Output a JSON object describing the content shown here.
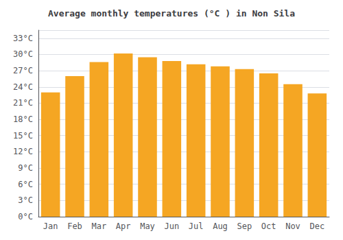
{
  "chart_data": {
    "type": "bar",
    "title": "Average monthly temperatures (°C ) in Non Sila",
    "categories": [
      "Jan",
      "Feb",
      "Mar",
      "Apr",
      "May",
      "Jun",
      "Jul",
      "Aug",
      "Sep",
      "Oct",
      "Nov",
      "Dec"
    ],
    "values": [
      23.0,
      26.0,
      28.6,
      30.2,
      29.5,
      28.8,
      28.2,
      27.8,
      27.3,
      26.5,
      24.5,
      22.8
    ],
    "color": "#F5A623",
    "ylim": [
      0,
      34.5
    ],
    "yticks": [
      {
        "value": 0,
        "label": "0°C"
      },
      {
        "value": 3,
        "label": "3°C"
      },
      {
        "value": 6,
        "label": "6°C"
      },
      {
        "value": 9,
        "label": "9°C"
      },
      {
        "value": 12,
        "label": "12°C"
      },
      {
        "value": 15,
        "label": "15°C"
      },
      {
        "value": 18,
        "label": "18°C"
      },
      {
        "value": 21,
        "label": "21°C"
      },
      {
        "value": 24,
        "label": "24°C"
      },
      {
        "value": 27,
        "label": "27°C"
      },
      {
        "value": 30,
        "label": "30°C"
      },
      {
        "value": 33,
        "label": "33°C"
      }
    ],
    "grid": true
  }
}
